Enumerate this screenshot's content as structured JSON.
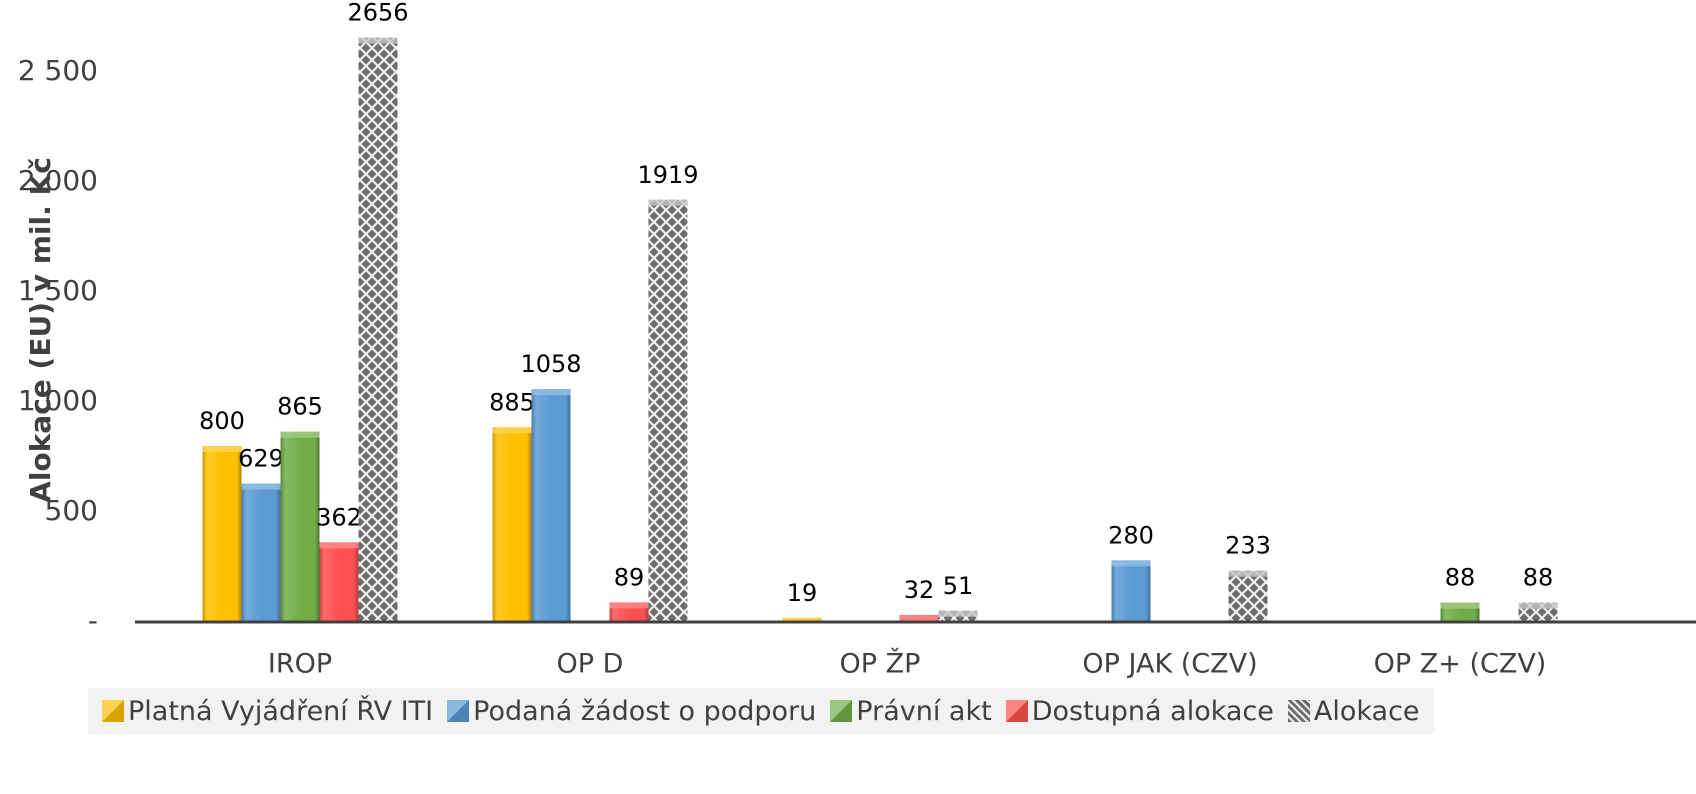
{
  "chart_data": {
    "type": "bar",
    "y_label": "Alokace (EU) v mil. Kč",
    "categories": [
      "IROP",
      "OP D",
      "OP ŽP",
      "OP JAK (CZV)",
      "OP Z+ (CZV)"
    ],
    "series": [
      {
        "name": "Platná Vyjádření ŘV ITI",
        "color": "#ffc000",
        "values": [
          800,
          885,
          19,
          null,
          null
        ]
      },
      {
        "name": "Podaná žádost o podporu",
        "color": "#5b9bd5",
        "values": [
          629,
          1058,
          null,
          280,
          null
        ]
      },
      {
        "name": "Právní akt",
        "color": "#70ad47",
        "values": [
          865,
          null,
          null,
          null,
          88
        ]
      },
      {
        "name": "Dostupná alokace",
        "color": "#ff5050",
        "values": [
          362,
          89,
          32,
          null,
          null
        ]
      },
      {
        "name": "Alokace",
        "color": "#a6a6a6",
        "hatch": true,
        "values": [
          2656,
          1919,
          51,
          233,
          88
        ]
      }
    ],
    "ylim": [
      0,
      2827
    ],
    "yticks": [
      {
        "value": 0,
        "label": "-"
      },
      500,
      {
        "value": 1000,
        "label": "1 000"
      },
      {
        "value": 1500,
        "label": "1 500"
      },
      {
        "value": 2000,
        "label": "2 000"
      },
      {
        "value": 2500,
        "label": "2 500"
      }
    ],
    "grid": false
  }
}
